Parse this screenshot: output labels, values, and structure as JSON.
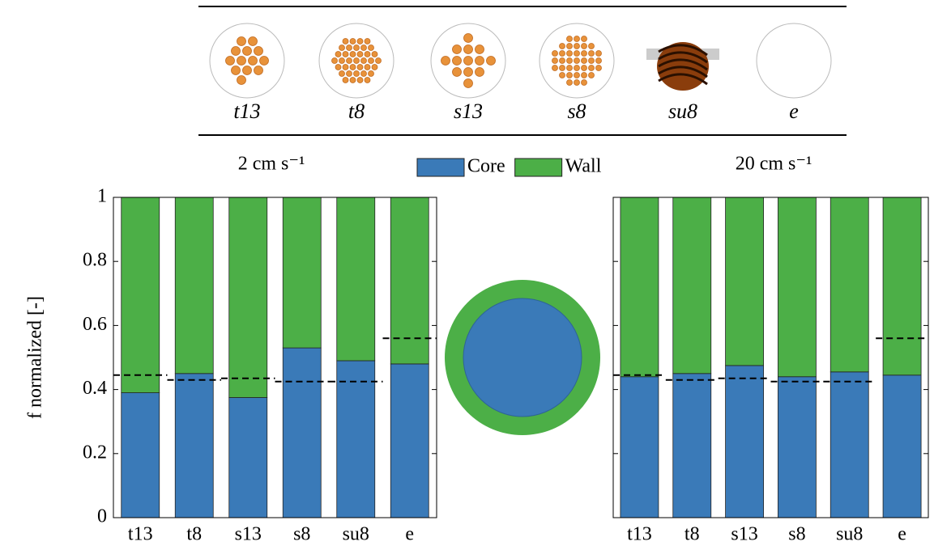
{
  "header": {
    "labels": [
      "t13",
      "t8",
      "s13",
      "s8",
      "su8",
      "e"
    ]
  },
  "chart_data": [
    {
      "type": "stacked_bar",
      "subtitle": "2 cm s⁻¹",
      "y_label": "f normalized [-]",
      "categories": [
        "t13",
        "t8",
        "s13",
        "s8",
        "su8",
        "e"
      ],
      "series": [
        {
          "name": "Core",
          "color": "#3a7ab8",
          "values": [
            0.39,
            0.45,
            0.375,
            0.53,
            0.49,
            0.48
          ]
        },
        {
          "name": "Wall",
          "color": "#4caf47",
          "values": [
            0.61,
            0.55,
            0.625,
            0.47,
            0.51,
            0.52
          ]
        }
      ],
      "dashed": [
        0.445,
        0.43,
        0.435,
        0.425,
        0.425,
        0.56
      ],
      "ylim": [
        0,
        1
      ],
      "yticks": [
        0,
        0.2,
        0.4,
        0.6,
        0.8,
        1
      ],
      "show_ytick_labels": true
    },
    {
      "type": "stacked_bar",
      "subtitle": "20 cm s⁻¹",
      "categories": [
        "t13",
        "t8",
        "s13",
        "s8",
        "su8",
        "e"
      ],
      "series": [
        {
          "color": "#3a7ab8",
          "values": [
            0.44,
            0.45,
            0.475,
            0.44,
            0.455,
            0.445
          ]
        },
        {
          "color": "#4caf47",
          "values": [
            0.56,
            0.55,
            0.525,
            0.56,
            0.545,
            0.555
          ]
        }
      ],
      "dashed": [
        0.445,
        0.43,
        0.435,
        0.425,
        0.425,
        0.56
      ],
      "ylim": [
        0,
        1
      ],
      "yticks": [
        0,
        0.2,
        0.4,
        0.6,
        0.8,
        1
      ],
      "show_ytick_labels": false
    }
  ]
}
